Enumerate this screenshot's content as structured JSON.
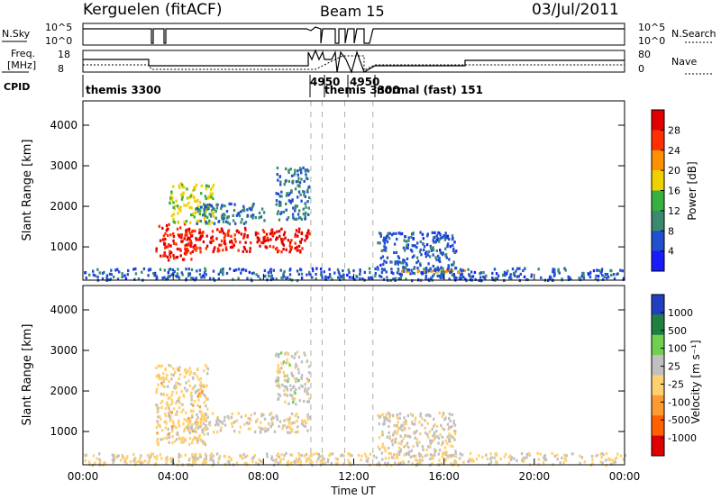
{
  "header": {
    "station": "Kerguelen (fitACF)",
    "beam": "Beam 15",
    "date": "03/Jul/2011"
  },
  "noise_panel": {
    "left_label": "N.Sky",
    "right_label": "N.Search",
    "left_ticks": [
      "10^5",
      "10^0"
    ],
    "right_ticks": [
      "10^5",
      "10^0"
    ]
  },
  "freq_panel": {
    "left_label_line1": "Freq.",
    "left_label_line2": "[MHz]",
    "right_label": "Nave",
    "left_ticks": [
      "18",
      "8"
    ],
    "right_ticks": [
      "80",
      "0"
    ]
  },
  "cpid_panel": {
    "label": "CPID",
    "segments": [
      "themis 3300",
      "4950",
      "themis 3300",
      "4950",
      "normal (fast) 151"
    ]
  },
  "x_axis": {
    "title": "Time UT",
    "ticks": [
      "00:00",
      "04:00",
      "08:00",
      "12:00",
      "16:00",
      "20:00",
      "00:00"
    ]
  },
  "power_panel": {
    "ylabel": "Slant Range [km]",
    "yticks": [
      "1000",
      "2000",
      "3000",
      "4000"
    ],
    "colorbar_title": "Power [dB]",
    "colorbar_ticks": [
      "4",
      "8",
      "12",
      "16",
      "20",
      "24",
      "28"
    ]
  },
  "velocity_panel": {
    "ylabel": "Slant Range [km]",
    "yticks": [
      "1000",
      "2000",
      "3000",
      "4000"
    ],
    "colorbar_title": "Velocity [m s⁻¹]",
    "colorbar_ticks": [
      "1000",
      "500",
      "100",
      "25",
      "-25",
      "-100",
      "-500",
      "-1000"
    ]
  },
  "chart_data": [
    {
      "type": "heatmap",
      "title": "Kerguelen (fitACF) Beam 15 03/Jul/2011",
      "xlabel": "Time UT",
      "ylabel": "Slant Range [km]",
      "xlim": [
        0,
        24
      ],
      "ylim": [
        180,
        4600
      ],
      "colorbar_label": "Power [dB]",
      "color_range": [
        0,
        30
      ],
      "colors": [
        "#1a1aff",
        "#2050d0",
        "#3a8a70",
        "#38b040",
        "#f0d000",
        "#ff9000",
        "#ff3000",
        "#e00000"
      ],
      "scatter_regions": [
        {
          "t": [
            3.2,
            4.8
          ],
          "range_km": [
            700,
            1600
          ],
          "power_db": 26
        },
        {
          "t": [
            4.5,
            10.0
          ],
          "range_km": [
            900,
            1500
          ],
          "power_db": 27
        },
        {
          "t": [
            3.8,
            5.8
          ],
          "range_km": [
            1600,
            2600
          ],
          "power_db": 16
        },
        {
          "t": [
            5.0,
            8.0
          ],
          "range_km": [
            1600,
            2100
          ],
          "power_db": 8
        },
        {
          "t": [
            8.5,
            10.0
          ],
          "range_km": [
            1700,
            3000
          ],
          "power_db": 8
        },
        {
          "t": [
            13.0,
            16.5
          ],
          "range_km": [
            400,
            1400
          ],
          "power_db": 6
        },
        {
          "t": [
            14.0,
            17.0
          ],
          "range_km": [
            400,
            450
          ],
          "power_db": 20
        },
        {
          "t": [
            0.0,
            24.0
          ],
          "range_km": [
            200,
            500
          ],
          "power_db": 6
        }
      ],
      "xticks": [
        "00:00",
        "04:00",
        "08:00",
        "12:00",
        "16:00",
        "20:00",
        "00:00"
      ],
      "yticks": [
        1000,
        2000,
        3000,
        4000
      ]
    },
    {
      "type": "heatmap",
      "xlabel": "Time UT",
      "ylabel": "Slant Range [km]",
      "xlim": [
        0,
        24
      ],
      "ylim": [
        180,
        4600
      ],
      "colorbar_label": "Velocity [m s⁻¹]",
      "color_range": [
        -1000,
        1000
      ],
      "colors": [
        "#e00000",
        "#ff6000",
        "#ff9a30",
        "#ffd070",
        "#c0c0c0",
        "#70d050",
        "#208040",
        "#2040c0"
      ],
      "scatter_regions": [
        {
          "t": [
            3.2,
            5.5
          ],
          "range_km": [
            700,
            2700
          ],
          "velocity": -100
        },
        {
          "t": [
            4.5,
            10.0
          ],
          "range_km": [
            1000,
            1500
          ],
          "velocity": 0
        },
        {
          "t": [
            8.5,
            10.0
          ],
          "range_km": [
            1700,
            3000
          ],
          "velocity": 100
        },
        {
          "t": [
            13.0,
            16.5
          ],
          "range_km": [
            400,
            1500
          ],
          "velocity": 50
        },
        {
          "t": [
            0.0,
            24.0
          ],
          "range_km": [
            200,
            500
          ],
          "velocity": -50
        }
      ],
      "xticks": [
        "00:00",
        "04:00",
        "08:00",
        "12:00",
        "16:00",
        "20:00",
        "00:00"
      ],
      "yticks": [
        1000,
        2000,
        3000,
        4000
      ]
    }
  ]
}
